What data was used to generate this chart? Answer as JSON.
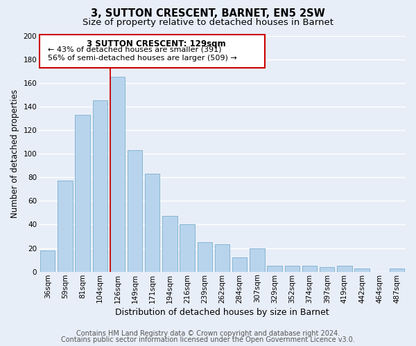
{
  "title": "3, SUTTON CRESCENT, BARNET, EN5 2SW",
  "subtitle": "Size of property relative to detached houses in Barnet",
  "xlabel": "Distribution of detached houses by size in Barnet",
  "ylabel": "Number of detached properties",
  "bar_labels": [
    "36sqm",
    "59sqm",
    "81sqm",
    "104sqm",
    "126sqm",
    "149sqm",
    "171sqm",
    "194sqm",
    "216sqm",
    "239sqm",
    "262sqm",
    "284sqm",
    "307sqm",
    "329sqm",
    "352sqm",
    "374sqm",
    "397sqm",
    "419sqm",
    "442sqm",
    "464sqm",
    "487sqm"
  ],
  "bar_values": [
    18,
    77,
    133,
    145,
    165,
    103,
    83,
    47,
    40,
    25,
    23,
    12,
    20,
    5,
    5,
    5,
    4,
    5,
    3,
    0,
    3
  ],
  "bar_color": "#b8d4ec",
  "bar_edge_color": "#7aaece",
  "highlight_index": 4,
  "highlight_line_color": "#cc0000",
  "ylim": [
    0,
    200
  ],
  "yticks": [
    0,
    20,
    40,
    60,
    80,
    100,
    120,
    140,
    160,
    180,
    200
  ],
  "annotation_title": "3 SUTTON CRESCENT: 129sqm",
  "annotation_line1": "← 43% of detached houses are smaller (391)",
  "annotation_line2": "56% of semi-detached houses are larger (509) →",
  "annotation_box_color": "#ffffff",
  "annotation_border_color": "#cc0000",
  "footer_line1": "Contains HM Land Registry data © Crown copyright and database right 2024.",
  "footer_line2": "Contains public sector information licensed under the Open Government Licence v3.0.",
  "bg_color": "#e8eef8",
  "plot_bg_color": "#e8eef8",
  "grid_color": "#ffffff",
  "title_fontsize": 10.5,
  "subtitle_fontsize": 9.5,
  "xlabel_fontsize": 9,
  "ylabel_fontsize": 8.5,
  "tick_fontsize": 7.5,
  "footer_fontsize": 7
}
